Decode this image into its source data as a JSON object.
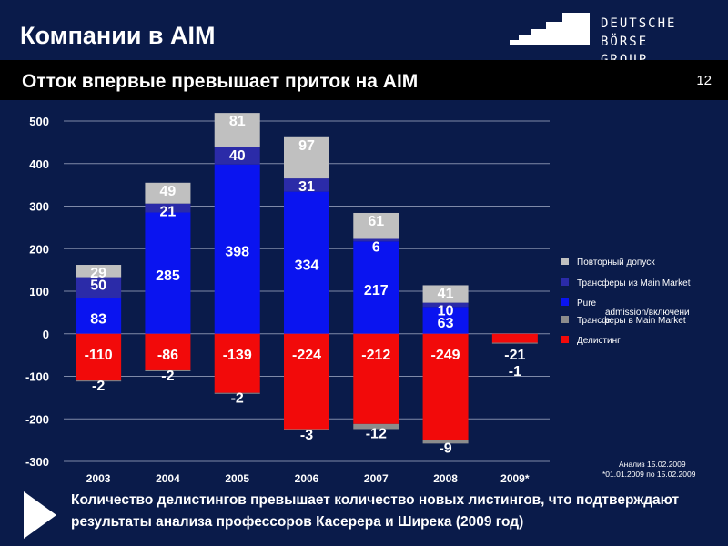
{
  "header": {
    "title": "Компании в AIM",
    "logo_line1": "DEUTSCHE BÖRSE",
    "logo_line2": "GROUP"
  },
  "subheader": {
    "title": "Отток впервые превышает приток на AIM",
    "page_number": "12"
  },
  "footer": {
    "text": "Количество делистингов превышает количество новых листингов, что подтверждают результаты анализа профессоров Касерера и Ширека (2009 год)"
  },
  "colors": {
    "background": "#0a1b4a",
    "readmission": "#c0c0c0",
    "transfer_from_main": "#2b2ba8",
    "pure": "#0a14f0",
    "transfer_to_main": "#8c8c8c",
    "delisting": "#f20a0a"
  },
  "chart_data": {
    "type": "bar",
    "stacked": true,
    "categories": [
      "2003",
      "2004",
      "2005",
      "2006",
      "2007",
      "2008",
      "2009*"
    ],
    "ylim": [
      -300,
      500
    ],
    "yticks": [
      500,
      400,
      300,
      200,
      100,
      0,
      -100,
      -200,
      -300
    ],
    "grid": true,
    "legend_position": "right",
    "series": [
      {
        "name": "Повторный допуск",
        "key": "readmission",
        "values": [
          29,
          49,
          81,
          97,
          61,
          41,
          0
        ]
      },
      {
        "name": "Трансферы из Main Market",
        "key": "transfer_from_main",
        "values": [
          50,
          21,
          40,
          31,
          6,
          10,
          0
        ]
      },
      {
        "name": "Pure admission/включение",
        "key": "pure",
        "values": [
          83,
          285,
          398,
          334,
          217,
          63,
          0
        ]
      },
      {
        "name": "Трансферы в Main Market",
        "key": "transfer_to_main",
        "values": [
          -2,
          -2,
          -2,
          -3,
          -12,
          -9,
          -1
        ]
      },
      {
        "name": "Делистинг",
        "key": "delisting",
        "values": [
          -110,
          -86,
          -139,
          -224,
          -212,
          -249,
          -21
        ]
      }
    ],
    "legend": [
      {
        "label": "Повторный допуск",
        "key": "readmission"
      },
      {
        "label": "Трансферы из Main Market",
        "key": "transfer_from_main"
      },
      {
        "label": "Pure",
        "key": "pure"
      },
      {
        "label": "admission/включени",
        "key": ""
      },
      {
        "label": "е",
        "key": ""
      },
      {
        "label": "Трансферы в Main Market",
        "key": "transfer_to_main"
      },
      {
        "label": "Делистинг",
        "key": "delisting"
      }
    ],
    "notes": [
      "Анализ 15.02.2009",
      "*01.01.2009 по 15.02.2009"
    ]
  }
}
